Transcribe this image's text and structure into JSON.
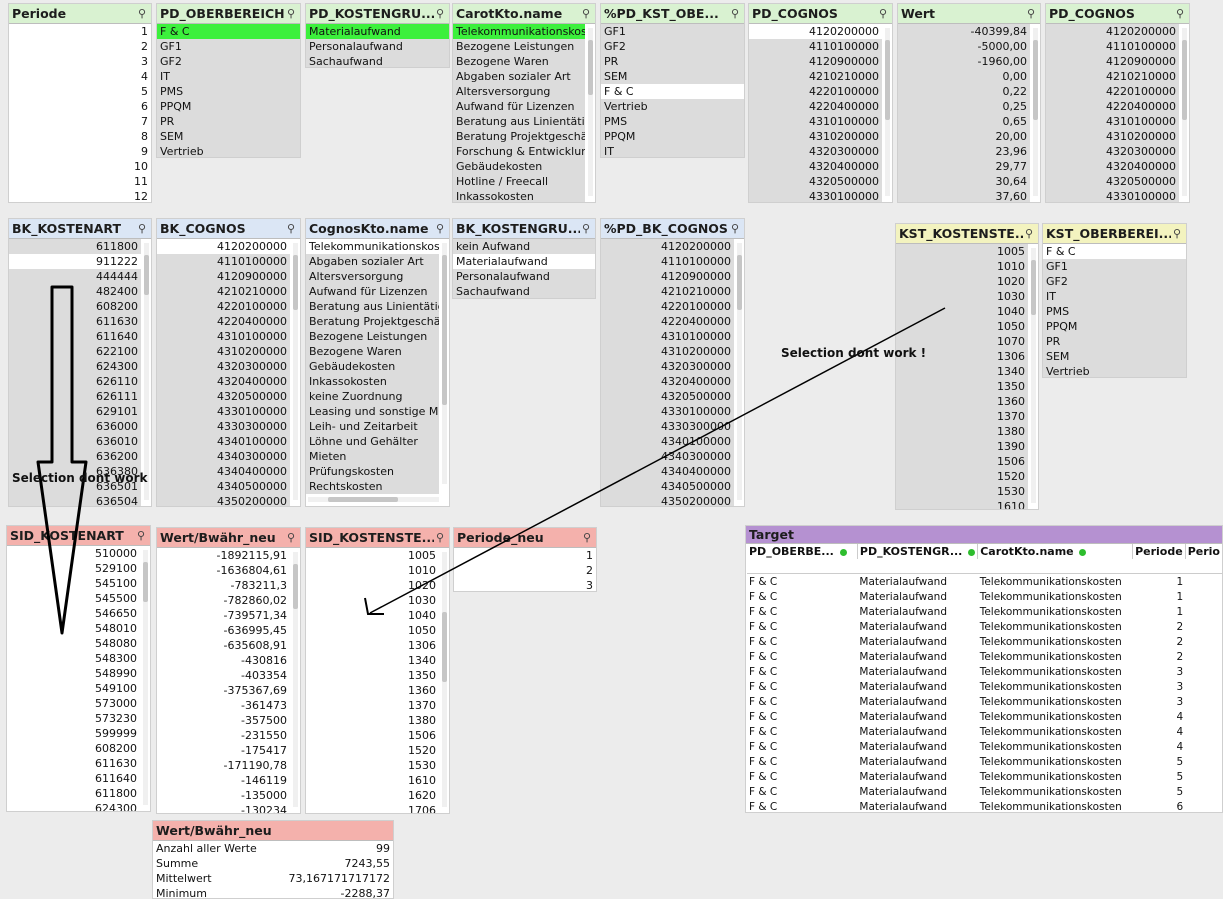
{
  "lists": {
    "periode": {
      "title": "Periode",
      "items": [
        "1",
        "2",
        "3",
        "4",
        "5",
        "6",
        "7",
        "8",
        "9",
        "10",
        "11",
        "12"
      ]
    },
    "pd_oberbereich": {
      "title": "PD_OBERBEREICH",
      "items": [
        "F & C",
        "GF1",
        "GF2",
        "IT",
        "PMS",
        "PPQM",
        "PR",
        "SEM",
        "Vertrieb"
      ]
    },
    "pd_kostengru": {
      "title": "PD_KOSTENGRU...",
      "items": [
        "Materialaufwand",
        "Personalaufwand",
        "Sachaufwand"
      ]
    },
    "carotkto": {
      "title": "CarotKto.name",
      "items": [
        "Telekommunikationskosten",
        "Bezogene Leistungen",
        "Bezogene Waren",
        "Abgaben sozialer Art",
        "Altersversorgung",
        "Aufwand für Lizenzen",
        "Beratung aus Linientätigkei",
        "Beratung Projektgeschäft",
        "Forschung & Entwicklung",
        "Gebäudekosten",
        "Hotline / Freecall",
        "Inkassokosten"
      ]
    },
    "pd_kst_obe": {
      "title": "%PD_KST_OBE...",
      "items": [
        "GF1",
        "GF2",
        "PR",
        "SEM",
        "F & C",
        "Vertrieb",
        "PMS",
        "PPQM",
        "IT"
      ]
    },
    "pd_cognos1": {
      "title": "PD_COGNOS",
      "items": [
        "4120200000",
        "4110100000",
        "4120900000",
        "4210210000",
        "4220100000",
        "4220400000",
        "4310100000",
        "4310200000",
        "4320300000",
        "4320400000",
        "4320500000",
        "4330100000"
      ]
    },
    "wert": {
      "title": "Wert",
      "items": [
        "-40399,84",
        "-5000,00",
        "-1960,00",
        "0,00",
        "0,22",
        "0,25",
        "0,65",
        "20,00",
        "23,96",
        "29,77",
        "30,64",
        "37,60"
      ]
    },
    "pd_cognos2": {
      "title": "PD_COGNOS",
      "items": [
        "4120200000",
        "4110100000",
        "4120900000",
        "4210210000",
        "4220100000",
        "4220400000",
        "4310100000",
        "4310200000",
        "4320300000",
        "4320400000",
        "4320500000",
        "4330100000"
      ]
    },
    "bk_kostenart": {
      "title": "BK_KOSTENART",
      "items": [
        "611800",
        "911222",
        "444444",
        "482400",
        "608200",
        "611630",
        "611640",
        "622100",
        "624300",
        "626110",
        "626111",
        "629101",
        "636000",
        "636010",
        "636200",
        "636380",
        "636501",
        "636504"
      ]
    },
    "bk_cognos": {
      "title": "BK_COGNOS",
      "items": [
        "4120200000",
        "4110100000",
        "4120900000",
        "4210210000",
        "4220100000",
        "4220400000",
        "4310100000",
        "4310200000",
        "4320300000",
        "4320400000",
        "4320500000",
        "4330100000",
        "4330300000",
        "4340100000",
        "4340300000",
        "4340400000",
        "4340500000",
        "4350200000"
      ]
    },
    "cognoskto": {
      "title": "CognosKto.name",
      "items": [
        "Telekommunikationskosten",
        "Abgaben sozialer Art",
        "Altersversorgung",
        "Aufwand für Lizenzen",
        "Beratung aus Linientätigkei",
        "Beratung Projektgeschäft",
        "Bezogene Leistungen",
        "Bezogene Waren",
        "Gebäudekosten",
        "Inkassokosten",
        "keine Zuordnung",
        "Leasing und sonstige Miete",
        "Leih- und Zeitarbeit",
        "Löhne und Gehälter",
        "Mieten",
        "Prüfungskosten",
        "Rechtskosten"
      ]
    },
    "bk_kostengru": {
      "title": "BK_KOSTENGRU...",
      "items": [
        "kein Aufwand",
        "Materialaufwand",
        "Personalaufwand",
        "Sachaufwand"
      ]
    },
    "pd_bk_cognos": {
      "title": "%PD_BK_COGNOS",
      "items": [
        "4120200000",
        "4110100000",
        "4120900000",
        "4210210000",
        "4220100000",
        "4220400000",
        "4310100000",
        "4310200000",
        "4320300000",
        "4320400000",
        "4320500000",
        "4330100000",
        "4330300000",
        "4340100000",
        "4340300000",
        "4340400000",
        "4340500000",
        "4350200000"
      ]
    },
    "kst_kostenste": {
      "title": "KST_KOSTENSTE...",
      "items": [
        "1005",
        "1010",
        "1020",
        "1030",
        "1040",
        "1050",
        "1070",
        "1306",
        "1340",
        "1350",
        "1360",
        "1370",
        "1380",
        "1390",
        "1506",
        "1520",
        "1530",
        "1610"
      ]
    },
    "kst_oberberei": {
      "title": "KST_OBERBEREI...",
      "items": [
        "F & C",
        "GF1",
        "GF2",
        "IT",
        "PMS",
        "PPQM",
        "PR",
        "SEM",
        "Vertrieb"
      ]
    },
    "sid_kostenart": {
      "title": "SID_KOSTENART",
      "items": [
        "510000",
        "529100",
        "545100",
        "545500",
        "546650",
        "548010",
        "548080",
        "548300",
        "548990",
        "549100",
        "573000",
        "573230",
        "599999",
        "608200",
        "611630",
        "611640",
        "611800",
        "624300"
      ]
    },
    "wert_bwaehr": {
      "title": "Wert/Bwähr_neu",
      "items": [
        "-1892115,91",
        "-1636804,61",
        "-783211,3",
        "-782860,02",
        "-739571,34",
        "-636995,45",
        "-635608,91",
        "-430816",
        "-403354",
        "-375367,69",
        "-361473",
        "-357500",
        "-231550",
        "-175417",
        "-171190,78",
        "-146119",
        "-135000",
        "-130234"
      ]
    },
    "sid_kostenste": {
      "title": "SID_KOSTENSTE...",
      "items": [
        "1005",
        "1010",
        "1020",
        "1030",
        "1040",
        "1050",
        "1306",
        "1340",
        "1350",
        "1360",
        "1370",
        "1380",
        "1506",
        "1520",
        "1530",
        "1610",
        "1620",
        "1706"
      ]
    },
    "periode_neu": {
      "title": "Periode_neu",
      "items": [
        "1",
        "2",
        "3"
      ]
    }
  },
  "target": {
    "title": "Target",
    "columns": [
      "PD_OBERBE...",
      "PD_KOSTENGR...",
      "CarotKto.name",
      "Periode",
      "Perio"
    ],
    "rows": [
      [
        "F & C",
        "Materialaufwand",
        "Telekommunikationskosten",
        "1"
      ],
      [
        "F & C",
        "Materialaufwand",
        "Telekommunikationskosten",
        "1"
      ],
      [
        "F & C",
        "Materialaufwand",
        "Telekommunikationskosten",
        "1"
      ],
      [
        "F & C",
        "Materialaufwand",
        "Telekommunikationskosten",
        "2"
      ],
      [
        "F & C",
        "Materialaufwand",
        "Telekommunikationskosten",
        "2"
      ],
      [
        "F & C",
        "Materialaufwand",
        "Telekommunikationskosten",
        "2"
      ],
      [
        "F & C",
        "Materialaufwand",
        "Telekommunikationskosten",
        "3"
      ],
      [
        "F & C",
        "Materialaufwand",
        "Telekommunikationskosten",
        "3"
      ],
      [
        "F & C",
        "Materialaufwand",
        "Telekommunikationskosten",
        "3"
      ],
      [
        "F & C",
        "Materialaufwand",
        "Telekommunikationskosten",
        "4"
      ],
      [
        "F & C",
        "Materialaufwand",
        "Telekommunikationskosten",
        "4"
      ],
      [
        "F & C",
        "Materialaufwand",
        "Telekommunikationskosten",
        "4"
      ],
      [
        "F & C",
        "Materialaufwand",
        "Telekommunikationskosten",
        "5"
      ],
      [
        "F & C",
        "Materialaufwand",
        "Telekommunikationskosten",
        "5"
      ],
      [
        "F & C",
        "Materialaufwand",
        "Telekommunikationskosten",
        "5"
      ],
      [
        "F & C",
        "Materialaufwand",
        "Telekommunikationskosten",
        "6"
      ]
    ]
  },
  "stats": {
    "title": "Wert/Bwähr_neu",
    "rows": [
      {
        "label": "Anzahl aller Werte",
        "value": "99"
      },
      {
        "label": "Summe",
        "value": "7243,55"
      },
      {
        "label": "Mittelwert",
        "value": "73,167171717172"
      },
      {
        "label": "Minimum",
        "value": "-2288,37"
      }
    ]
  },
  "annotations": {
    "left": "Selection dont work",
    "right": "Selection dont work !"
  },
  "colors": {
    "selected": "#3cf03c",
    "excluded": "#dcdcdc",
    "possible": "#ffffff"
  }
}
